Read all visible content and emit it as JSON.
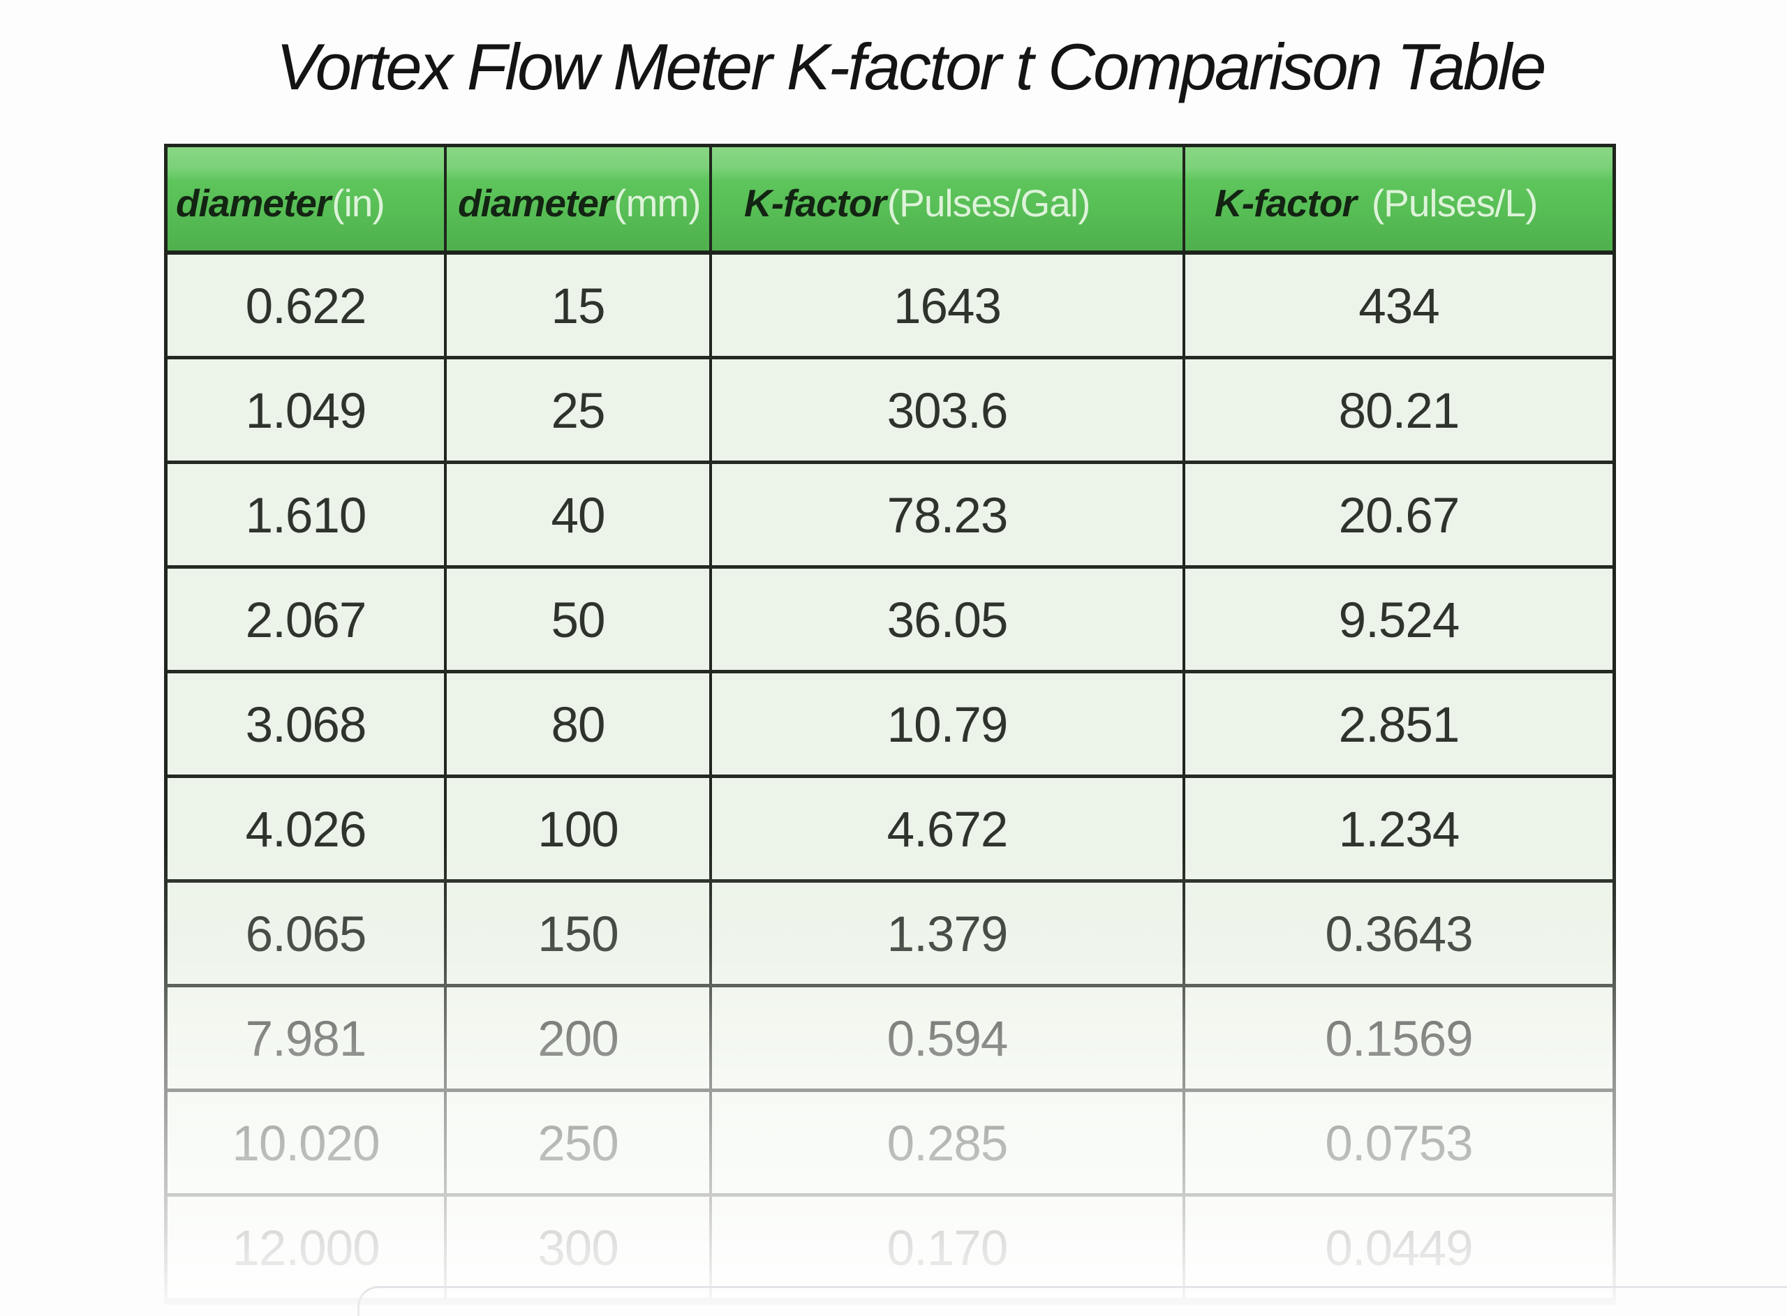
{
  "title": "Vortex Flow Meter K-factor t Comparison Table",
  "chart_data": {
    "type": "table",
    "title": "Vortex Flow Meter K-factor t Comparison Table",
    "columns": [
      {
        "label": "diameter",
        "unit": "(in)"
      },
      {
        "label": "diameter",
        "unit": "(mm)"
      },
      {
        "label": "K-factor",
        "unit": "(Pulses/Gal)"
      },
      {
        "label": "K-factor",
        "unit": "(Pulses/L)"
      }
    ],
    "rows": [
      [
        "0.622",
        "15",
        "1643",
        "434"
      ],
      [
        "1.049",
        "25",
        "303.6",
        "80.21"
      ],
      [
        "1.610",
        "40",
        "78.23",
        "20.67"
      ],
      [
        "2.067",
        "50",
        "36.05",
        "9.524"
      ],
      [
        "3.068",
        "80",
        "10.79",
        "2.851"
      ],
      [
        "4.026",
        "100",
        "4.672",
        "1.234"
      ],
      [
        "6.065",
        "150",
        "1.379",
        "0.3643"
      ],
      [
        "7.981",
        "200",
        "0.594",
        "0.1569"
      ],
      [
        "10.020",
        "250",
        "0.285",
        "0.0753"
      ],
      [
        "12.000",
        "300",
        "0.170",
        "0.0449"
      ]
    ],
    "layout_hints": {
      "header_bg": "#5cc45a",
      "header_bg_light": "#8ad786",
      "header_text": "#132413",
      "header_unit_text": "#ddf3d9",
      "row_bg": "#ecf3e8",
      "border_color": "#20251e",
      "body_text": "#2e332c",
      "bottom_rows_fade_to_white": true
    }
  }
}
